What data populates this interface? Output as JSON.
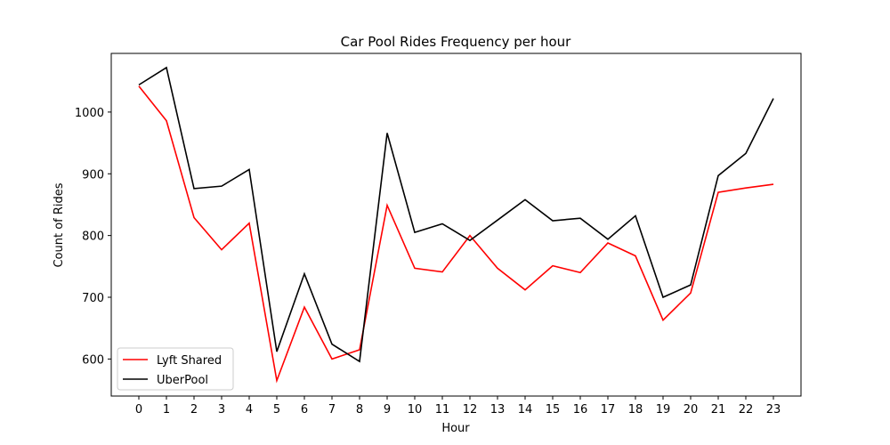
{
  "chart_data": {
    "type": "line",
    "title": "Car Pool Rides Frequency per hour",
    "xlabel": "Hour",
    "ylabel": "Count of Rides",
    "x": [
      0,
      1,
      2,
      3,
      4,
      5,
      6,
      7,
      8,
      9,
      10,
      11,
      12,
      13,
      14,
      15,
      16,
      17,
      18,
      19,
      20,
      21,
      22,
      23
    ],
    "xlim": [
      -1,
      24
    ],
    "ylim": [
      540,
      1095
    ],
    "yticks": [
      600,
      700,
      800,
      900,
      1000
    ],
    "grid": false,
    "legend_position": "lower-left",
    "series": [
      {
        "name": "Lyft Shared",
        "color": "#ff0000",
        "values": [
          1042,
          986,
          829,
          777,
          820,
          565,
          684,
          600,
          615,
          849,
          747,
          741,
          800,
          747,
          712,
          751,
          740,
          788,
          767,
          663,
          707,
          870,
          877,
          883
        ]
      },
      {
        "name": "UberPool",
        "color": "#000000",
        "values": [
          1044,
          1072,
          876,
          880,
          907,
          612,
          738,
          624,
          596,
          966,
          805,
          819,
          792,
          825,
          858,
          824,
          828,
          794,
          832,
          700,
          720,
          897,
          933,
          1022
        ]
      }
    ]
  }
}
